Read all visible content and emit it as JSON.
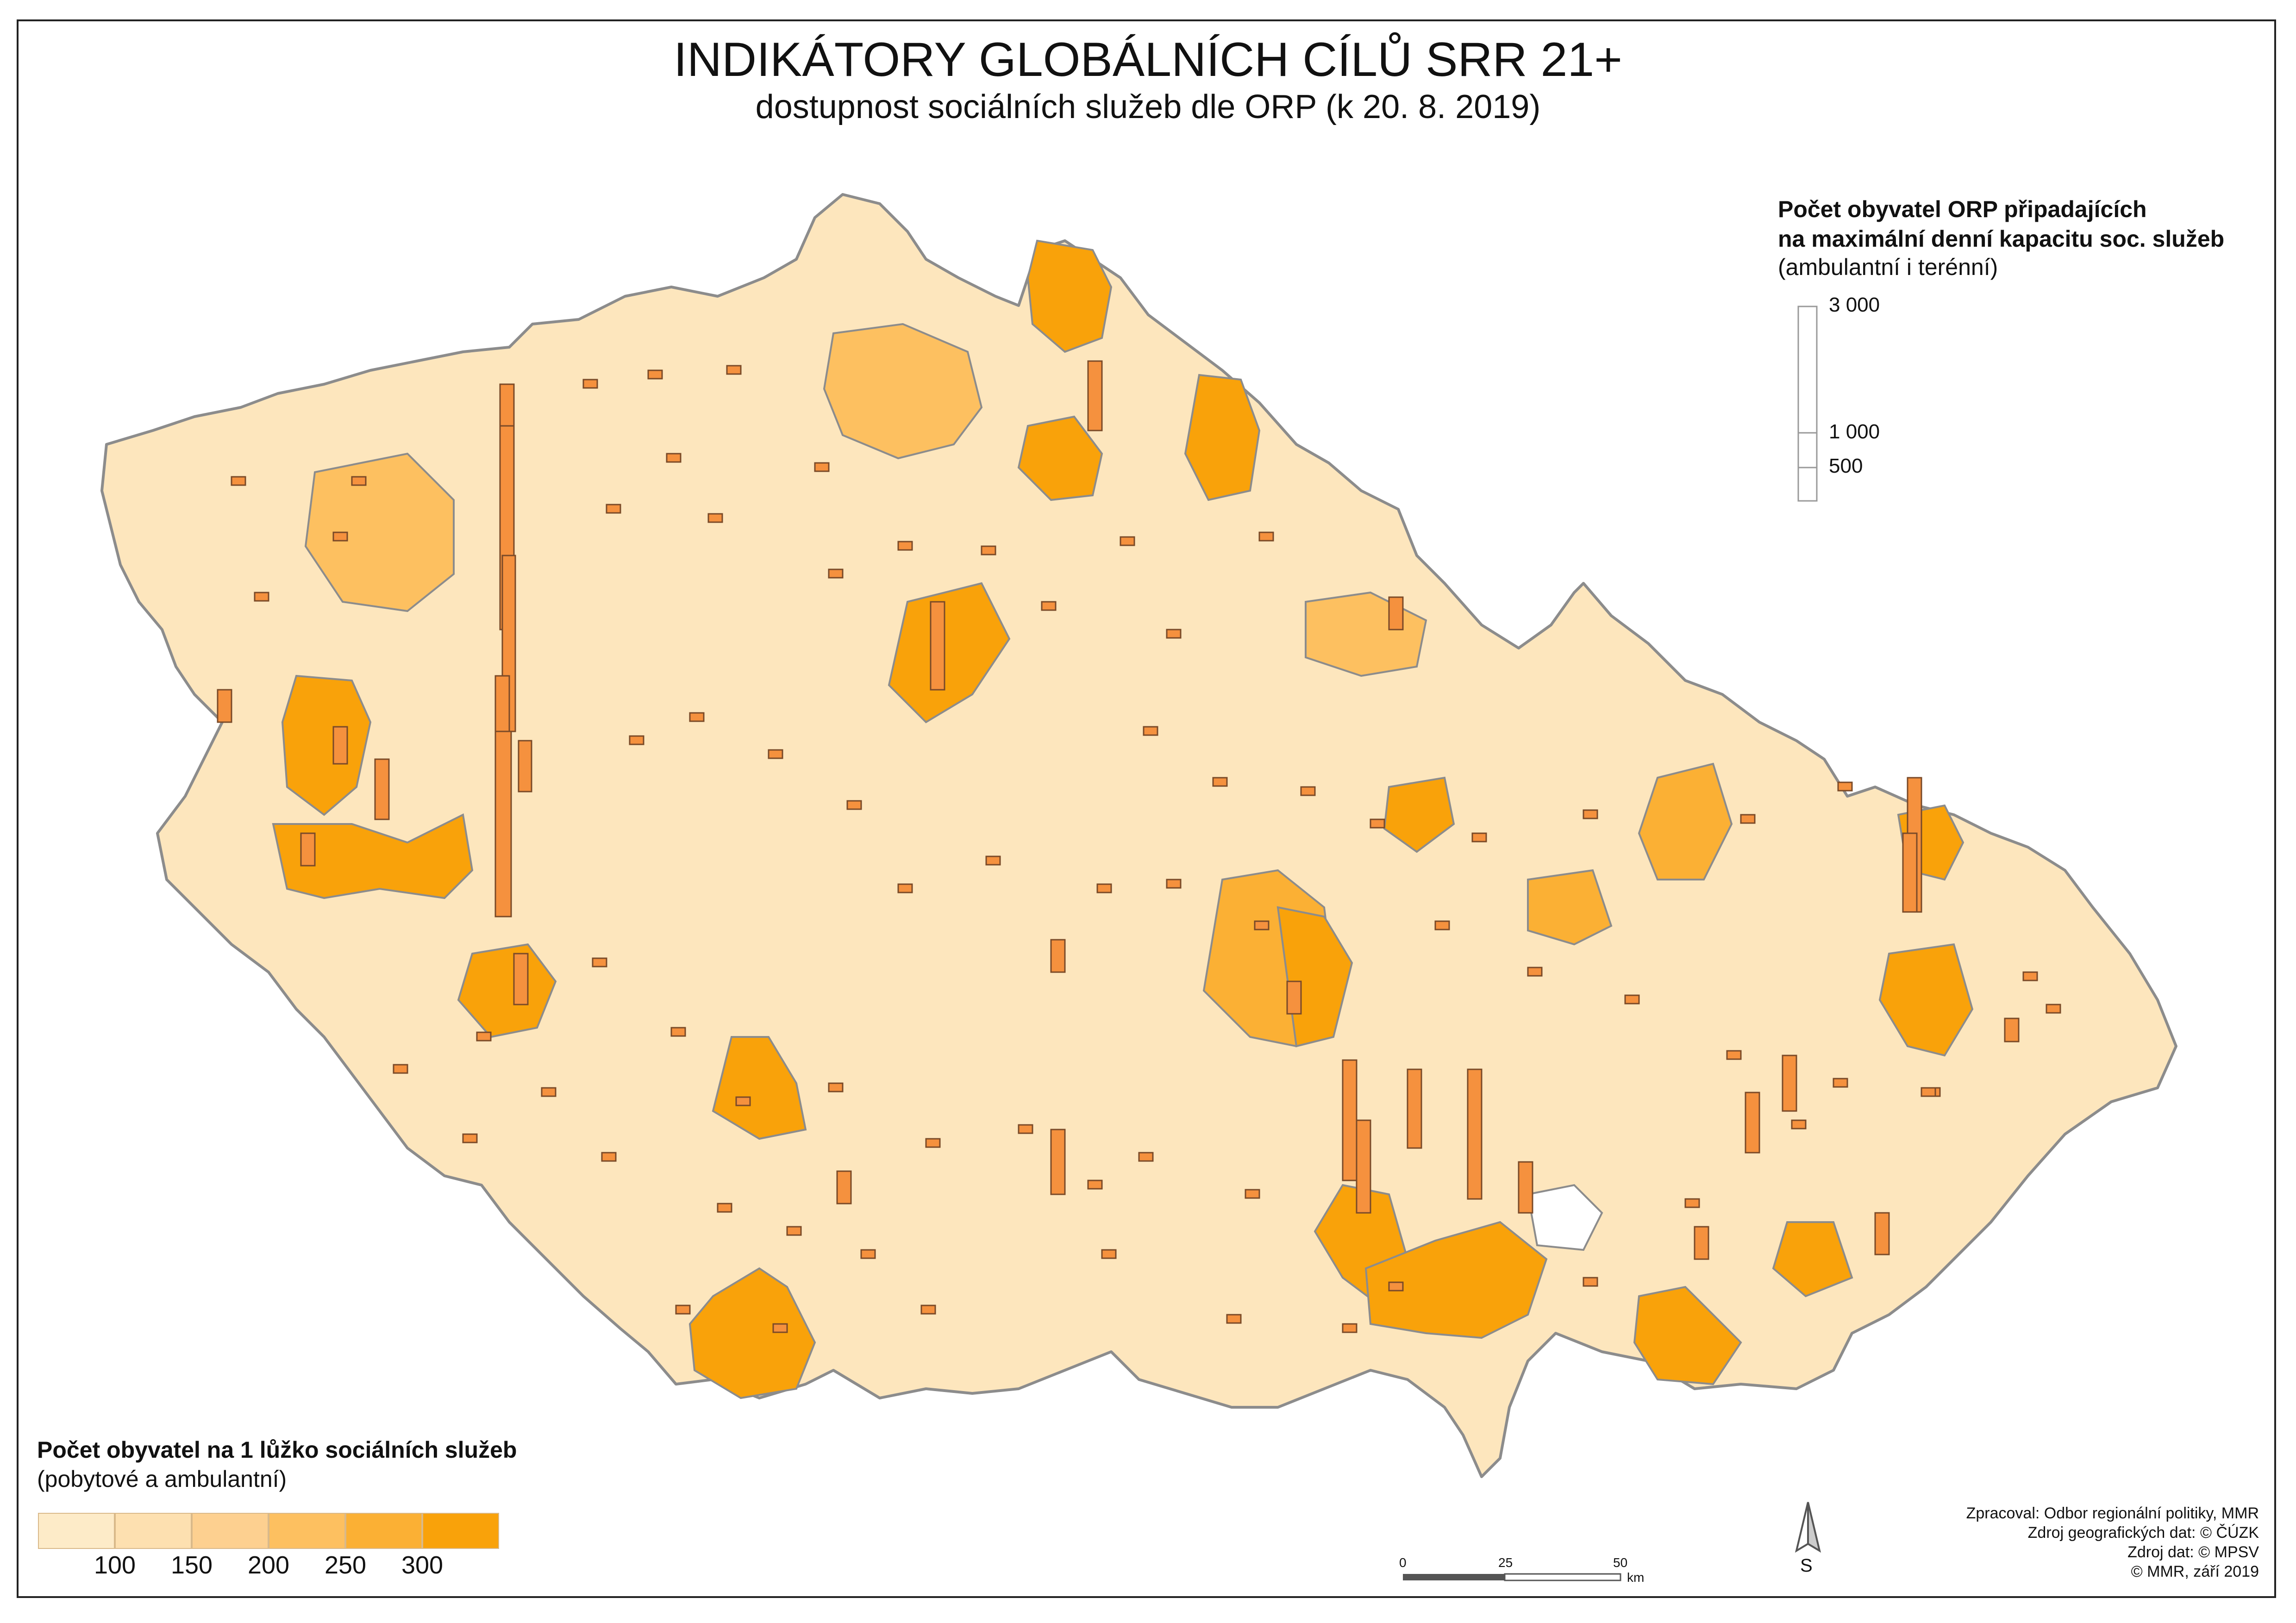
{
  "title": "INDIKÁTORY GLOBÁLNÍCH CÍLŮ SRR 21+",
  "subtitle": "dostupnost sociálních služeb dle ORP (k 20. 8. 2019)",
  "bar_legend": {
    "title_line1": "Počet obyvatel ORP připadajících",
    "title_line2": "na maximální denní kapacitu soc. služeb",
    "note": "(ambulantní i terénní)",
    "ticks": [
      {
        "label": "3 000",
        "value": 3000
      },
      {
        "label": "1 000",
        "value": 1000
      },
      {
        "label": "500",
        "value": 500
      }
    ]
  },
  "choropleth_legend": {
    "title": "Počet obyvatel na 1 lůžko sociálních služeb",
    "note": "(pobytové a ambulantní)",
    "class_colors": [
      "#fdebc8",
      "#fde0b0",
      "#fdd090",
      "#fdc060",
      "#fbb034",
      "#f9a20a"
    ],
    "breaks": [
      "100",
      "150",
      "200",
      "250",
      "300"
    ]
  },
  "scale_bar": {
    "ticks": [
      "0",
      "25",
      "50"
    ],
    "unit": "km"
  },
  "north_arrow_label": "S",
  "credits": [
    "Zpracoval: Odbor regionální politiky, MMR",
    "Zdroj geografických dat: © ČÚZK",
    "Zdroj dat: © MPSV",
    "© MMR, září 2019"
  ],
  "colors": {
    "border": "#8c8c8c",
    "bar_fill": "#f5913e",
    "bar_stroke": "#7a4a28",
    "frame": "#222222"
  }
}
